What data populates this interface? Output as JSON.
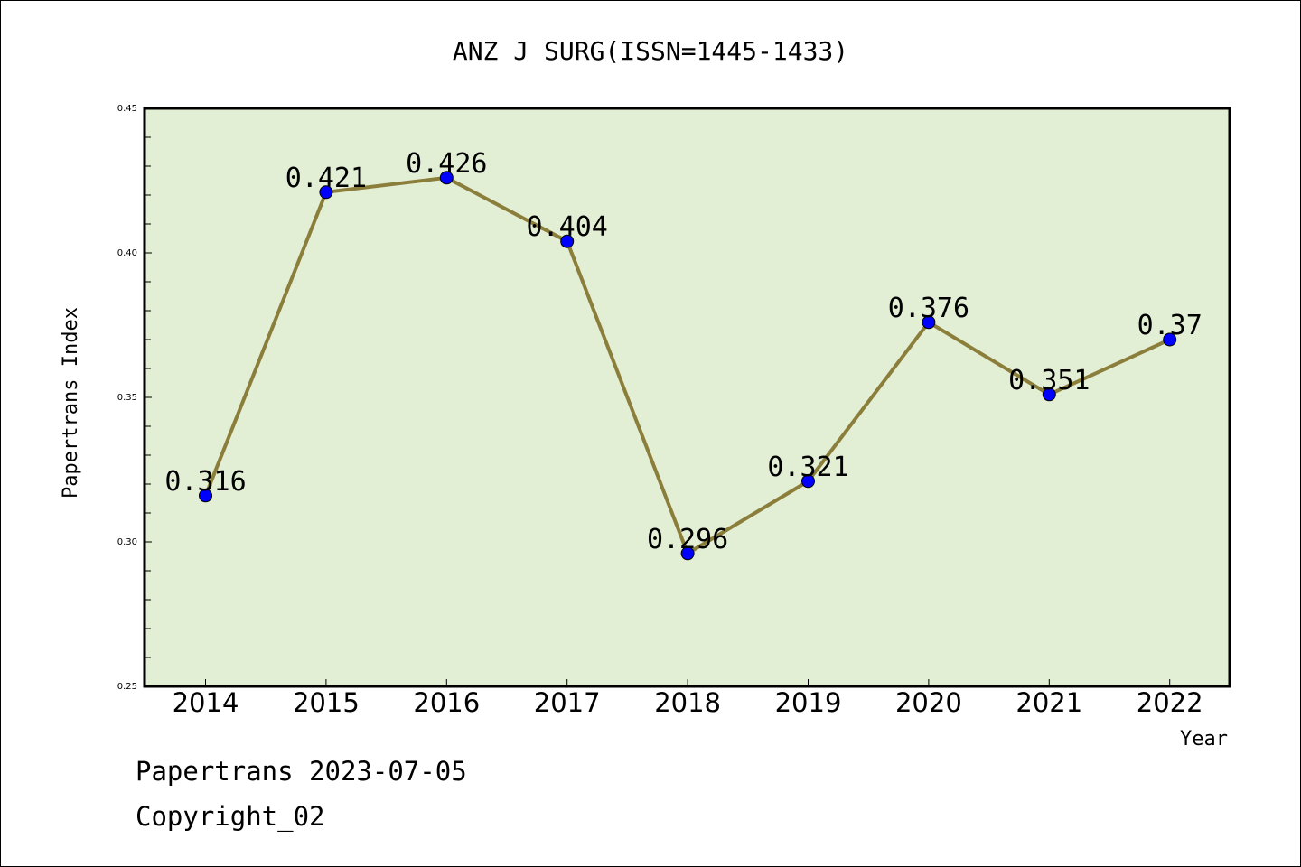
{
  "chart_data": {
    "type": "line",
    "title": "ANZ J SURG(ISSN=1445-1433)",
    "xlabel": "Year",
    "ylabel": "Papertrans Index",
    "categories": [
      "2014",
      "2015",
      "2016",
      "2017",
      "2018",
      "2019",
      "2020",
      "2021",
      "2022"
    ],
    "values": [
      0.316,
      0.421,
      0.426,
      0.404,
      0.296,
      0.321,
      0.376,
      0.351,
      0.37
    ],
    "data_labels": [
      "0.316",
      "0.421",
      "0.426",
      "0.404",
      "0.296",
      "0.321",
      "0.376",
      "0.351",
      "0.37"
    ],
    "ylim": [
      0.25,
      0.45
    ],
    "yticks": [
      "0.25",
      "0.30",
      "0.35",
      "0.40",
      "0.45"
    ],
    "grid": false,
    "colors": {
      "line": "#8b7d3a",
      "marker": "#0000ff",
      "plot_background": "#e2efd5"
    }
  },
  "footer": {
    "line1": "Papertrans 2023-07-05",
    "line2": "Copyright_02"
  }
}
